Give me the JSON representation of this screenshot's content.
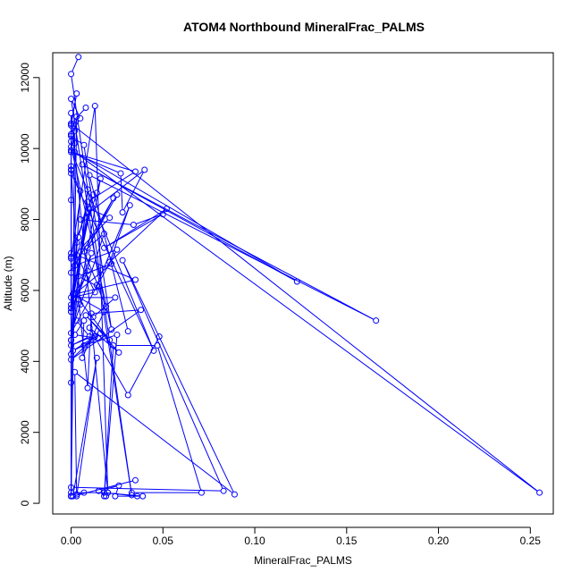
{
  "chart_data": {
    "type": "line",
    "title": "ATOM4 Northbound MineralFrac_PALMS",
    "xlabel": "MineralFrac_PALMS",
    "ylabel": "Altitude (m)",
    "xlim": [
      -0.01,
      0.2625
    ],
    "ylim": [
      -300,
      12700
    ],
    "x_ticks": [
      0.0,
      0.05,
      0.1,
      0.15,
      0.2,
      0.25
    ],
    "x_tick_labels": [
      "0.00",
      "0.05",
      "0.10",
      "0.15",
      "0.20",
      "0.25"
    ],
    "y_ticks": [
      0,
      2000,
      4000,
      6000,
      8000,
      10000,
      12000
    ],
    "y_tick_labels": [
      "0",
      "2000",
      "4000",
      "6000",
      "8000",
      "10000",
      "12000"
    ],
    "grid": false,
    "legend": "none",
    "marker": "open-circle",
    "color": "#0000ff",
    "series": [
      {
        "x": [
          0.004,
          0.0,
          0.033,
          0.0,
          0.005,
          0.0,
          0.0,
          0.02,
          0.013,
          0.0,
          0.0,
          0.0,
          0.0,
          0.0,
          0.005
        ],
        "y": [
          12580,
          12100,
          230,
          11400,
          10850,
          10400,
          11000,
          300,
          11200,
          6950,
          8550,
          9400,
          200,
          9400,
          5600
        ]
      },
      {
        "x": [
          0.008,
          0.0,
          0.003,
          0.0,
          0.0,
          0.002,
          0.0,
          0.0,
          0.022,
          0.007,
          0.0,
          0.0,
          0.003,
          0.0,
          0.045,
          0.0,
          0.0,
          0.0,
          0.002
        ],
        "y": [
          11150,
          10700,
          11550,
          10650,
          200,
          10500,
          10200,
          10050,
          4900,
          10100,
          10350,
          200,
          10900,
          9950,
          4300,
          9300,
          9500,
          10400,
          10150
        ]
      },
      {
        "x": [
          0.0,
          0.255,
          0.002,
          0.123,
          0.006,
          0.166,
          0.01,
          0.031
        ],
        "y": [
          10700,
          300,
          9900,
          6250,
          9550,
          5150,
          9250,
          4850
        ]
      },
      {
        "x": [
          0.0,
          0.005,
          0.0,
          0.009,
          0.0,
          0.0,
          0.0,
          0.016,
          0.014,
          0.0,
          0.0,
          0.01,
          0.021,
          0.0,
          0.0,
          0.012,
          0.0,
          0.009,
          0.0,
          0.003,
          0.0
        ],
        "y": [
          9400,
          8800,
          4600,
          8850,
          4200,
          3400,
          4600,
          9150,
          8750,
          6500,
          5500,
          8300,
          8050,
          6900,
          7050,
          8700,
          5600,
          8200,
          5400,
          7350,
          5500
        ]
      },
      {
        "x": [
          0.004,
          0.009,
          0.035,
          0.0,
          0.027,
          0.028,
          0.04,
          0.005,
          0.034,
          0.05,
          0.018,
          0.052,
          0.021,
          0.032,
          0.014,
          0.019
        ],
        "y": [
          7500,
          8500,
          9350,
          9900,
          9300,
          8200,
          9400,
          8000,
          7850,
          8150,
          7200,
          8300,
          6800,
          8400,
          6150,
          5550
        ]
      },
      {
        "x": [
          0.025,
          0.009,
          0.023,
          0.002,
          0.025,
          0.0,
          0.018,
          0.007,
          0.015,
          0.004,
          0.022,
          0.002,
          0.035,
          0.003,
          0.013,
          0.0,
          0.024,
          0.012
        ],
        "y": [
          8700,
          7200,
          8600,
          6700,
          7150,
          4800,
          7600,
          7100,
          6100,
          6400,
          6750,
          5900,
          6300,
          7000,
          5950,
          5800,
          5800,
          5250
        ]
      },
      {
        "x": [
          0.009,
          0.0,
          0.011,
          0.008,
          0.001,
          0.018,
          0.006,
          0.007,
          0.002,
          0.015,
          0.001,
          0.013,
          0.0,
          0.038,
          0.011,
          0.009,
          0.004,
          0.021,
          0.008,
          0.026,
          0.01,
          0.031,
          0.048
        ],
        "y": [
          6550,
          5400,
          7050,
          6350,
          5900,
          5400,
          4100,
          5150,
          4750,
          4650,
          4300,
          4700,
          4050,
          5450,
          5350,
          3250,
          5750,
          4600,
          5300,
          4250,
          4950,
          3050,
          4700
        ]
      },
      {
        "x": [
          0.003,
          0.01,
          0.0,
          0.016,
          0.007,
          0.025,
          0.018,
          0.023,
          0.047,
          0.071,
          0.033,
          0.036,
          0.018,
          0.039,
          0.024,
          0.026,
          0.015,
          0.019,
          0.02,
          0.0,
          0.0
        ],
        "y": [
          5150,
          4700,
          4450,
          4800,
          4450,
          4750,
          200,
          4450,
          4450,
          300,
          300,
          200,
          300,
          200,
          200,
          500,
          350,
          200,
          300,
          300,
          200
        ]
      },
      {
        "x": [
          0.0,
          0.083,
          0.028,
          0.089,
          0.002,
          0.003,
          0.007,
          0.003,
          0.014,
          0.001,
          0.035
        ],
        "y": [
          450,
          350,
          6850,
          250,
          3700,
          250,
          300,
          200,
          4100,
          200,
          650
        ]
      }
    ]
  }
}
